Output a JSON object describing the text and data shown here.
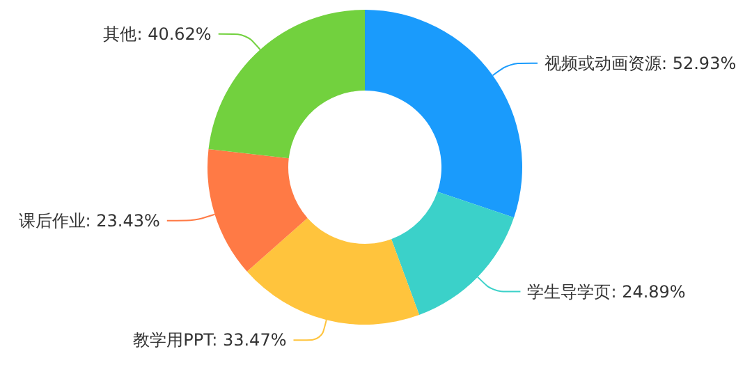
{
  "chart_data": {
    "type": "donut",
    "categories": [
      "视频或动画资源",
      "学生导学页",
      "教学用PPT",
      "课后作业",
      "其他"
    ],
    "values": [
      52.93,
      24.89,
      33.47,
      23.43,
      40.62
    ],
    "value_labels": [
      "52.93%",
      "24.89%",
      "33.47%",
      "23.43%",
      "40.62%"
    ],
    "colors": [
      "#1a9bfc",
      "#3bd1c9",
      "#ffc43d",
      "#ff7a45",
      "#72d13e"
    ],
    "legend": false
  }
}
